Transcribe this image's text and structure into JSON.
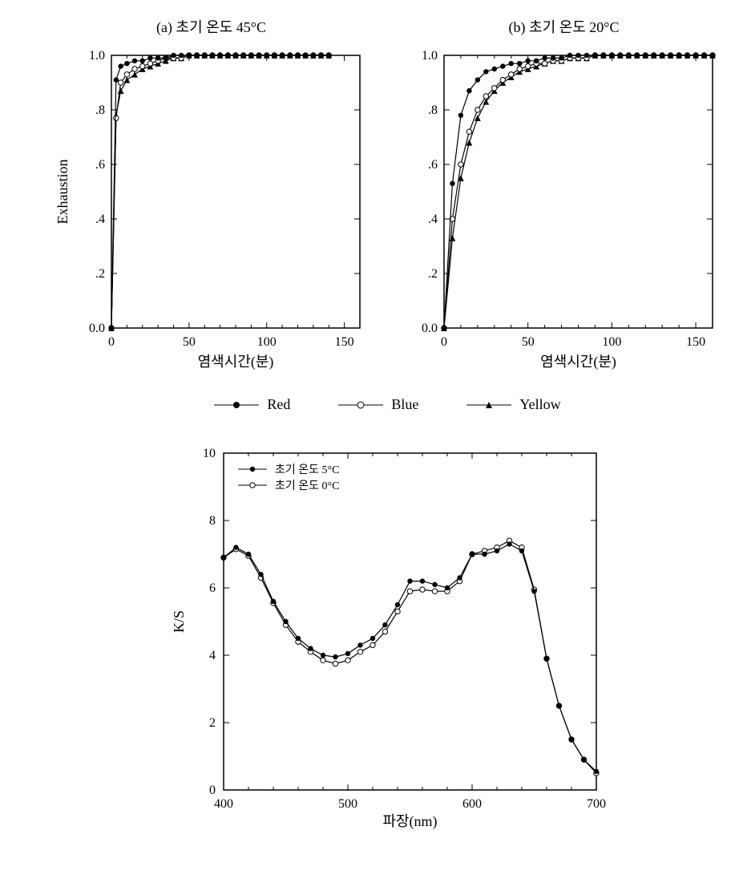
{
  "topCharts": {
    "ylabel": "Exhaustion",
    "xlabel": "염색시간(분)",
    "xlim": [
      0,
      160
    ],
    "ylim": [
      0,
      1.0
    ],
    "xticks": [
      0,
      50,
      100,
      150
    ],
    "yticks": [
      0.0,
      0.2,
      0.4,
      0.6,
      0.8,
      1.0
    ],
    "ytick_labels": [
      "0.0",
      ".2",
      ".4",
      ".6",
      ".8",
      "1.0"
    ],
    "background_color": "#ffffff",
    "axis_color": "#000000",
    "line_color": "#000000",
    "title_fontsize": 18,
    "label_fontsize": 18,
    "tick_fontsize": 16,
    "chartA": {
      "title": "(a)   초기 온도   45°C",
      "series": {
        "red": {
          "marker": "filled-circle",
          "x": [
            0,
            3,
            6,
            10,
            15,
            20,
            25,
            30,
            35,
            40,
            45,
            50,
            55,
            60,
            65,
            70,
            75,
            80,
            85,
            90,
            95,
            100,
            105,
            110,
            115,
            120,
            125,
            130,
            135,
            140
          ],
          "y": [
            0,
            0.91,
            0.96,
            0.97,
            0.98,
            0.98,
            0.99,
            0.99,
            0.99,
            1.0,
            1.0,
            1.0,
            1.0,
            1.0,
            1.0,
            1.0,
            1.0,
            1.0,
            1.0,
            1.0,
            1.0,
            1.0,
            1.0,
            1.0,
            1.0,
            1.0,
            1.0,
            1.0,
            1.0,
            1.0
          ]
        },
        "blue": {
          "marker": "open-circle",
          "x": [
            0,
            3,
            6,
            10,
            15,
            20,
            25,
            30,
            35,
            40,
            45,
            50,
            55,
            60,
            65,
            70,
            75,
            80,
            85,
            90,
            95,
            100,
            105,
            110,
            115,
            120,
            125,
            130,
            135,
            140
          ],
          "y": [
            0,
            0.77,
            0.9,
            0.93,
            0.95,
            0.96,
            0.97,
            0.98,
            0.99,
            0.99,
            0.99,
            1.0,
            1.0,
            1.0,
            1.0,
            1.0,
            1.0,
            1.0,
            1.0,
            1.0,
            1.0,
            1.0,
            1.0,
            1.0,
            1.0,
            1.0,
            1.0,
            1.0,
            1.0,
            1.0
          ]
        },
        "yellow": {
          "marker": "filled-triangle",
          "x": [
            0,
            3,
            6,
            10,
            15,
            20,
            25,
            30,
            35,
            40,
            45,
            50,
            55,
            60,
            65,
            70,
            75,
            80,
            85,
            90,
            95,
            100,
            105,
            110,
            115,
            120,
            125,
            130,
            135,
            140
          ],
          "y": [
            0,
            0.78,
            0.87,
            0.91,
            0.93,
            0.95,
            0.96,
            0.97,
            0.98,
            0.99,
            0.99,
            1.0,
            1.0,
            1.0,
            1.0,
            1.0,
            1.0,
            1.0,
            1.0,
            1.0,
            1.0,
            1.0,
            1.0,
            1.0,
            1.0,
            1.0,
            1.0,
            1.0,
            1.0,
            1.0
          ]
        }
      }
    },
    "chartB": {
      "title": "(b)   초기 온도   20°C",
      "series": {
        "red": {
          "marker": "filled-circle",
          "x": [
            0,
            5,
            10,
            15,
            20,
            25,
            30,
            35,
            40,
            45,
            50,
            55,
            60,
            65,
            70,
            75,
            80,
            85,
            90,
            95,
            100,
            105,
            110,
            115,
            120,
            125,
            130,
            135,
            140,
            145,
            150,
            155,
            160
          ],
          "y": [
            0,
            0.53,
            0.78,
            0.87,
            0.91,
            0.94,
            0.95,
            0.96,
            0.97,
            0.97,
            0.98,
            0.98,
            0.99,
            0.99,
            0.99,
            1.0,
            1.0,
            1.0,
            1.0,
            1.0,
            1.0,
            1.0,
            1.0,
            1.0,
            1.0,
            1.0,
            1.0,
            1.0,
            1.0,
            1.0,
            1.0,
            1.0,
            1.0
          ]
        },
        "blue": {
          "marker": "open-circle",
          "x": [
            0,
            5,
            10,
            15,
            20,
            25,
            30,
            35,
            40,
            45,
            50,
            55,
            60,
            65,
            70,
            75,
            80,
            85,
            90,
            95,
            100,
            105,
            110,
            115,
            120,
            125,
            130,
            135,
            140,
            145,
            150,
            155,
            160
          ],
          "y": [
            0,
            0.4,
            0.6,
            0.72,
            0.8,
            0.85,
            0.88,
            0.91,
            0.93,
            0.95,
            0.96,
            0.97,
            0.97,
            0.98,
            0.98,
            0.99,
            0.99,
            0.99,
            1.0,
            1.0,
            1.0,
            1.0,
            1.0,
            1.0,
            1.0,
            1.0,
            1.0,
            1.0,
            1.0,
            1.0,
            1.0,
            1.0,
            1.0
          ]
        },
        "yellow": {
          "marker": "filled-triangle",
          "x": [
            0,
            5,
            10,
            15,
            20,
            25,
            30,
            35,
            40,
            45,
            50,
            55,
            60,
            65,
            70,
            75,
            80,
            85,
            90,
            95,
            100,
            105,
            110,
            115,
            120,
            125,
            130,
            135,
            140,
            145,
            150,
            155,
            160
          ],
          "y": [
            0,
            0.33,
            0.55,
            0.68,
            0.77,
            0.83,
            0.87,
            0.9,
            0.92,
            0.94,
            0.95,
            0.96,
            0.97,
            0.98,
            0.98,
            0.99,
            0.99,
            0.99,
            1.0,
            1.0,
            1.0,
            1.0,
            1.0,
            1.0,
            1.0,
            1.0,
            1.0,
            1.0,
            1.0,
            1.0,
            1.0,
            1.0,
            1.0
          ]
        }
      }
    }
  },
  "legend": {
    "items": [
      {
        "label": "Red",
        "marker": "filled-circle"
      },
      {
        "label": "Blue",
        "marker": "open-circle"
      },
      {
        "label": "Yellow",
        "marker": "filled-triangle"
      }
    ]
  },
  "bottomChart": {
    "xlabel": "파장(nm)",
    "ylabel": "K/S",
    "xlim": [
      400,
      700
    ],
    "ylim": [
      0,
      10
    ],
    "xticks": [
      400,
      500,
      600,
      700
    ],
    "yticks": [
      0,
      2,
      4,
      6,
      8,
      10
    ],
    "background_color": "#ffffff",
    "axis_color": "#000000",
    "line_color": "#000000",
    "label_fontsize": 18,
    "tick_fontsize": 16,
    "legend_fontsize": 14,
    "legend_pos": "top-left",
    "series": {
      "s5": {
        "label": "초기 온도   5°C",
        "marker": "filled-circle",
        "x": [
          400,
          410,
          420,
          430,
          440,
          450,
          460,
          470,
          480,
          490,
          500,
          510,
          520,
          530,
          540,
          550,
          560,
          570,
          580,
          590,
          600,
          610,
          620,
          630,
          640,
          650,
          660,
          670,
          680,
          690,
          700
        ],
        "y": [
          6.9,
          7.2,
          7.0,
          6.4,
          5.6,
          5.0,
          4.5,
          4.2,
          4.0,
          3.95,
          4.05,
          4.3,
          4.5,
          4.9,
          5.5,
          6.2,
          6.2,
          6.1,
          6.0,
          6.3,
          7.0,
          7.0,
          7.1,
          7.3,
          7.1,
          5.9,
          3.9,
          2.5,
          1.5,
          0.9,
          0.55
        ]
      },
      "s0": {
        "label": "초기 온도   0°C",
        "marker": "open-circle",
        "x": [
          400,
          410,
          420,
          430,
          440,
          450,
          460,
          470,
          480,
          490,
          500,
          510,
          520,
          530,
          540,
          550,
          560,
          570,
          580,
          590,
          600,
          610,
          620,
          630,
          640,
          650,
          660,
          670,
          680,
          690,
          700
        ],
        "y": [
          6.9,
          7.15,
          6.95,
          6.3,
          5.55,
          4.9,
          4.4,
          4.1,
          3.85,
          3.75,
          3.85,
          4.1,
          4.3,
          4.7,
          5.3,
          5.9,
          5.95,
          5.9,
          5.9,
          6.2,
          7.0,
          7.1,
          7.2,
          7.4,
          7.2,
          5.95,
          3.9,
          2.5,
          1.5,
          0.9,
          0.5
        ]
      }
    }
  }
}
